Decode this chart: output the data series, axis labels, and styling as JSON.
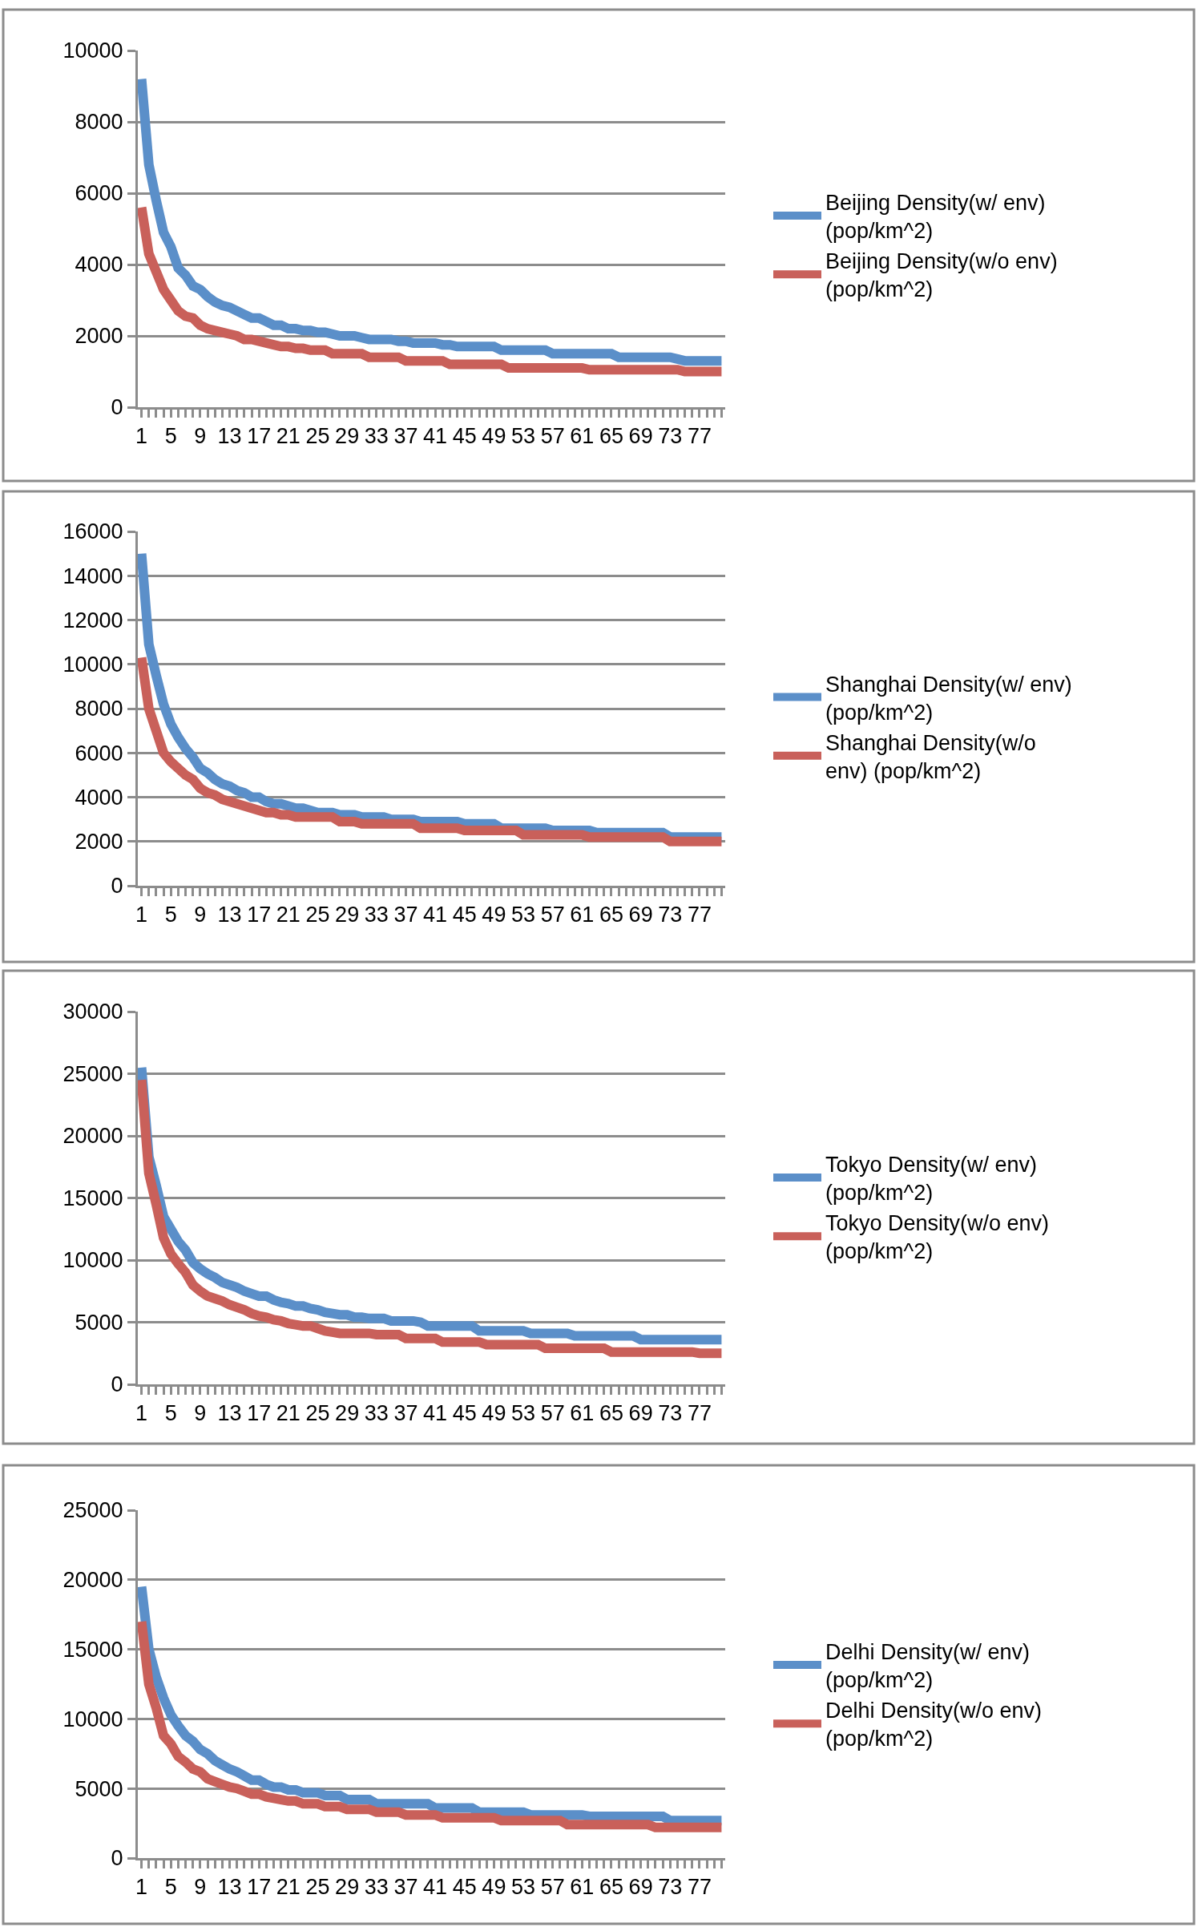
{
  "chart_data": [
    {
      "type": "line",
      "categories": [
        "1",
        null,
        null,
        null,
        "5",
        null,
        null,
        null,
        "9",
        null,
        null,
        null,
        "13",
        null,
        null,
        null,
        "17",
        null,
        null,
        null,
        "21",
        null,
        null,
        null,
        "25",
        null,
        null,
        null,
        "29",
        null,
        null,
        null,
        "33",
        null,
        null,
        null,
        "37",
        null,
        null,
        null,
        "41",
        null,
        null,
        null,
        "45",
        null,
        null,
        null,
        "49",
        null,
        null,
        null,
        "53",
        null,
        null,
        null,
        "57",
        null,
        null,
        null,
        "61",
        null,
        null,
        null,
        "65",
        null,
        null,
        null,
        "69",
        null,
        null,
        null,
        "73",
        null,
        null,
        null,
        "77",
        null,
        null,
        null
      ],
      "series": [
        {
          "name": "Beijing Density(w/ env) (pop/km^2)",
          "color": "#5b8fc9",
          "values": [
            9200,
            6800,
            5800,
            4900,
            4500,
            3900,
            3700,
            3400,
            3300,
            3100,
            2950,
            2850,
            2800,
            2700,
            2600,
            2500,
            2500,
            2400,
            2300,
            2300,
            2200,
            2200,
            2150,
            2150,
            2100,
            2100,
            2050,
            2000,
            2000,
            2000,
            1950,
            1900,
            1900,
            1900,
            1900,
            1850,
            1850,
            1800,
            1800,
            1800,
            1800,
            1750,
            1750,
            1700,
            1700,
            1700,
            1700,
            1700,
            1700,
            1600,
            1600,
            1600,
            1600,
            1600,
            1600,
            1600,
            1500,
            1500,
            1500,
            1500,
            1500,
            1500,
            1500,
            1500,
            1500,
            1400,
            1400,
            1400,
            1400,
            1400,
            1400,
            1400,
            1400,
            1350,
            1300,
            1300,
            1300,
            1300,
            1300,
            1300
          ]
        },
        {
          "name": "Beijing Density(w/o env) (pop/km^2)",
          "color": "#c9605a",
          "values": [
            5600,
            4300,
            3800,
            3300,
            3000,
            2700,
            2550,
            2500,
            2300,
            2200,
            2150,
            2100,
            2050,
            2000,
            1900,
            1900,
            1850,
            1800,
            1750,
            1700,
            1700,
            1650,
            1650,
            1600,
            1600,
            1600,
            1500,
            1500,
            1500,
            1500,
            1500,
            1400,
            1400,
            1400,
            1400,
            1400,
            1300,
            1300,
            1300,
            1300,
            1300,
            1300,
            1200,
            1200,
            1200,
            1200,
            1200,
            1200,
            1200,
            1200,
            1100,
            1100,
            1100,
            1100,
            1100,
            1100,
            1100,
            1100,
            1100,
            1100,
            1100,
            1050,
            1050,
            1050,
            1050,
            1050,
            1050,
            1050,
            1050,
            1050,
            1050,
            1050,
            1050,
            1050,
            1000,
            1000,
            1000,
            1000,
            1000,
            1000
          ]
        }
      ],
      "ylim": [
        0,
        10000
      ],
      "yticks": [
        0,
        2000,
        4000,
        6000,
        8000,
        10000
      ],
      "grid": "y",
      "legend": "right",
      "marker": "none",
      "line_style": "solid"
    },
    {
      "type": "line",
      "categories": [
        "1",
        null,
        null,
        null,
        "5",
        null,
        null,
        null,
        "9",
        null,
        null,
        null,
        "13",
        null,
        null,
        null,
        "17",
        null,
        null,
        null,
        "21",
        null,
        null,
        null,
        "25",
        null,
        null,
        null,
        "29",
        null,
        null,
        null,
        "33",
        null,
        null,
        null,
        "37",
        null,
        null,
        null,
        "41",
        null,
        null,
        null,
        "45",
        null,
        null,
        null,
        "49",
        null,
        null,
        null,
        "53",
        null,
        null,
        null,
        "57",
        null,
        null,
        null,
        "61",
        null,
        null,
        null,
        "65",
        null,
        null,
        null,
        "69",
        null,
        null,
        null,
        "73",
        null,
        null,
        null,
        "77",
        null,
        null,
        null
      ],
      "series": [
        {
          "name": "Shanghai Density(w/ env) (pop/km^2)",
          "color": "#5b8fc9",
          "values": [
            15000,
            10900,
            9500,
            8200,
            7300,
            6700,
            6200,
            5800,
            5300,
            5100,
            4800,
            4600,
            4500,
            4300,
            4200,
            4000,
            4000,
            3800,
            3700,
            3700,
            3600,
            3500,
            3500,
            3400,
            3300,
            3300,
            3300,
            3200,
            3200,
            3200,
            3100,
            3100,
            3100,
            3100,
            3000,
            3000,
            3000,
            3000,
            2900,
            2900,
            2900,
            2900,
            2900,
            2900,
            2800,
            2800,
            2800,
            2800,
            2800,
            2600,
            2600,
            2600,
            2600,
            2600,
            2600,
            2600,
            2500,
            2500,
            2500,
            2500,
            2500,
            2500,
            2400,
            2400,
            2400,
            2400,
            2400,
            2400,
            2400,
            2400,
            2400,
            2400,
            2200,
            2200,
            2200,
            2200,
            2200,
            2200,
            2200,
            2200
          ]
        },
        {
          "name": "Shanghai Density(w/o env) (pop/km^2)",
          "color": "#c9605a",
          "values": [
            10300,
            8000,
            7000,
            6000,
            5600,
            5300,
            5000,
            4800,
            4400,
            4200,
            4100,
            3900,
            3800,
            3700,
            3600,
            3500,
            3400,
            3300,
            3300,
            3200,
            3200,
            3100,
            3100,
            3100,
            3100,
            3100,
            3100,
            2900,
            2900,
            2900,
            2800,
            2800,
            2800,
            2800,
            2800,
            2800,
            2800,
            2800,
            2600,
            2600,
            2600,
            2600,
            2600,
            2600,
            2500,
            2500,
            2500,
            2500,
            2500,
            2500,
            2500,
            2500,
            2300,
            2300,
            2300,
            2300,
            2300,
            2300,
            2300,
            2300,
            2300,
            2200,
            2200,
            2200,
            2200,
            2200,
            2200,
            2200,
            2200,
            2200,
            2200,
            2200,
            2000,
            2000,
            2000,
            2000,
            2000,
            2000,
            2000,
            2000
          ]
        }
      ],
      "ylim": [
        0,
        16000
      ],
      "yticks": [
        0,
        2000,
        4000,
        6000,
        8000,
        10000,
        12000,
        14000,
        16000
      ],
      "grid": "y",
      "legend": "right",
      "marker": "none",
      "line_style": "solid"
    },
    {
      "type": "line",
      "categories": [
        "1",
        null,
        null,
        null,
        "5",
        null,
        null,
        null,
        "9",
        null,
        null,
        null,
        "13",
        null,
        null,
        null,
        "17",
        null,
        null,
        null,
        "21",
        null,
        null,
        null,
        "25",
        null,
        null,
        null,
        "29",
        null,
        null,
        null,
        "33",
        null,
        null,
        null,
        "37",
        null,
        null,
        null,
        "41",
        null,
        null,
        null,
        "45",
        null,
        null,
        null,
        "49",
        null,
        null,
        null,
        "53",
        null,
        null,
        null,
        "57",
        null,
        null,
        null,
        "61",
        null,
        null,
        null,
        "65",
        null,
        null,
        null,
        "69",
        null,
        null,
        null,
        "73",
        null,
        null,
        null,
        "77",
        null,
        null,
        null
      ],
      "series": [
        {
          "name": "Tokyo Density(w/ env) (pop/km^2)",
          "color": "#5b8fc9",
          "values": [
            25500,
            18300,
            16000,
            13500,
            12500,
            11500,
            10800,
            9800,
            9300,
            8900,
            8600,
            8200,
            8000,
            7800,
            7500,
            7300,
            7100,
            7100,
            6800,
            6600,
            6500,
            6300,
            6300,
            6100,
            6000,
            5800,
            5700,
            5600,
            5600,
            5400,
            5400,
            5300,
            5300,
            5300,
            5100,
            5100,
            5100,
            5100,
            5000,
            4700,
            4700,
            4700,
            4700,
            4700,
            4700,
            4700,
            4300,
            4300,
            4300,
            4300,
            4300,
            4300,
            4300,
            4100,
            4100,
            4100,
            4100,
            4100,
            4100,
            3900,
            3900,
            3900,
            3900,
            3900,
            3900,
            3900,
            3900,
            3900,
            3600,
            3600,
            3600,
            3600,
            3600,
            3600,
            3600,
            3600,
            3600,
            3600,
            3600,
            3600
          ]
        },
        {
          "name": "Tokyo Density(w/o env) (pop/km^2)",
          "color": "#c9605a",
          "values": [
            24500,
            17000,
            14500,
            11800,
            10500,
            9700,
            9000,
            8000,
            7500,
            7100,
            6900,
            6700,
            6400,
            6200,
            6000,
            5700,
            5500,
            5400,
            5200,
            5100,
            4900,
            4800,
            4700,
            4700,
            4500,
            4300,
            4200,
            4100,
            4100,
            4100,
            4100,
            4100,
            4000,
            4000,
            4000,
            4000,
            3700,
            3700,
            3700,
            3700,
            3700,
            3400,
            3400,
            3400,
            3400,
            3400,
            3400,
            3200,
            3200,
            3200,
            3200,
            3200,
            3200,
            3200,
            3200,
            2900,
            2900,
            2900,
            2900,
            2900,
            2900,
            2900,
            2900,
            2900,
            2600,
            2600,
            2600,
            2600,
            2600,
            2600,
            2600,
            2600,
            2600,
            2600,
            2600,
            2600,
            2500,
            2500,
            2500,
            2500
          ]
        }
      ],
      "ylim": [
        0,
        30000
      ],
      "yticks": [
        0,
        5000,
        10000,
        15000,
        20000,
        25000,
        30000
      ],
      "grid": "y",
      "legend": "right",
      "marker": "none",
      "line_style": "solid"
    },
    {
      "type": "line",
      "categories": [
        "1",
        null,
        null,
        null,
        "5",
        null,
        null,
        null,
        "9",
        null,
        null,
        null,
        "13",
        null,
        null,
        null,
        "17",
        null,
        null,
        null,
        "21",
        null,
        null,
        null,
        "25",
        null,
        null,
        null,
        "29",
        null,
        null,
        null,
        "33",
        null,
        null,
        null,
        "37",
        null,
        null,
        null,
        "41",
        null,
        null,
        null,
        "45",
        null,
        null,
        null,
        "49",
        null,
        null,
        null,
        "53",
        null,
        null,
        null,
        "57",
        null,
        null,
        null,
        "61",
        null,
        null,
        null,
        "65",
        null,
        null,
        null,
        "69",
        null,
        null,
        null,
        "73",
        null,
        null,
        null,
        "77",
        null,
        null,
        null
      ],
      "series": [
        {
          "name": "Delhi Density(w/ env) (pop/km^2)",
          "color": "#5b8fc9",
          "values": [
            19500,
            15000,
            13000,
            11500,
            10300,
            9500,
            8800,
            8400,
            7800,
            7500,
            7000,
            6700,
            6400,
            6200,
            5900,
            5600,
            5600,
            5300,
            5100,
            5100,
            4900,
            4900,
            4700,
            4700,
            4700,
            4500,
            4500,
            4500,
            4200,
            4200,
            4200,
            4200,
            3900,
            3900,
            3900,
            3900,
            3900,
            3900,
            3900,
            3900,
            3600,
            3600,
            3600,
            3600,
            3600,
            3600,
            3300,
            3300,
            3300,
            3300,
            3300,
            3300,
            3300,
            3100,
            3100,
            3100,
            3100,
            3100,
            3100,
            3100,
            3100,
            3000,
            3000,
            3000,
            3000,
            3000,
            3000,
            3000,
            3000,
            3000,
            3000,
            3000,
            2700,
            2700,
            2700,
            2700,
            2700,
            2700,
            2700,
            2700
          ]
        },
        {
          "name": "Delhi Density(w/o env) (pop/km^2)",
          "color": "#c9605a",
          "values": [
            17000,
            12500,
            10800,
            8800,
            8200,
            7300,
            6900,
            6400,
            6200,
            5700,
            5500,
            5300,
            5100,
            5000,
            4800,
            4600,
            4600,
            4400,
            4300,
            4200,
            4100,
            4100,
            3900,
            3900,
            3900,
            3700,
            3700,
            3700,
            3500,
            3500,
            3500,
            3500,
            3300,
            3300,
            3300,
            3300,
            3100,
            3100,
            3100,
            3100,
            3100,
            2900,
            2900,
            2900,
            2900,
            2900,
            2900,
            2900,
            2900,
            2700,
            2700,
            2700,
            2700,
            2700,
            2700,
            2700,
            2700,
            2700,
            2400,
            2400,
            2400,
            2400,
            2400,
            2400,
            2400,
            2400,
            2400,
            2400,
            2400,
            2400,
            2200,
            2200,
            2200,
            2200,
            2200,
            2200,
            2200,
            2200,
            2200,
            2200
          ]
        }
      ],
      "ylim": [
        0,
        25000
      ],
      "yticks": [
        0,
        5000,
        10000,
        15000,
        20000,
        25000
      ],
      "grid": "y",
      "legend": "right",
      "marker": "none",
      "line_style": "solid"
    }
  ]
}
